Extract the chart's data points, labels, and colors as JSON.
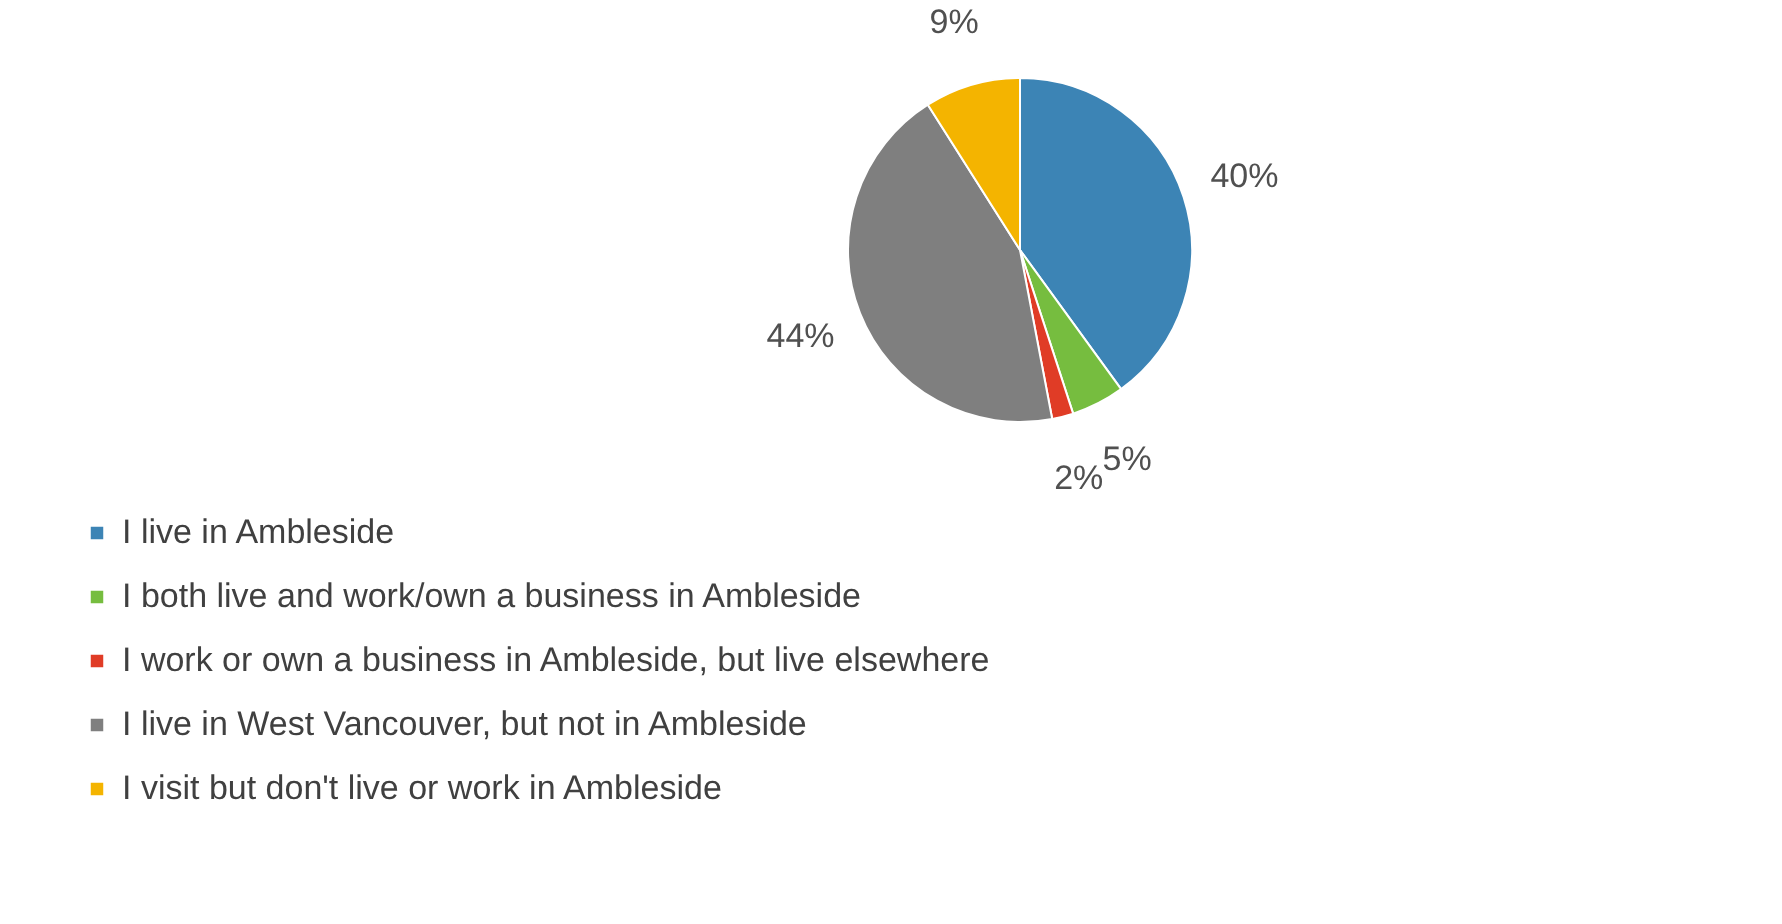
{
  "chart_data": {
    "type": "pie",
    "categories": [
      "I live in Ambleside",
      "I both live and work/own a business in Ambleside",
      "I work or own a business in Ambleside, but live elsewhere",
      "I live in West Vancouver, but not in Ambleside",
      "I visit but don't live or work in Ambleside"
    ],
    "values": [
      40,
      5,
      2,
      44,
      9
    ],
    "value_labels": [
      "40%",
      "5%",
      "2%",
      "44%",
      "9%"
    ],
    "colors": [
      "#3c84b5",
      "#76bd3f",
      "#e03c26",
      "#7f7f7f",
      "#f4b400"
    ],
    "legend": "bottom left"
  }
}
